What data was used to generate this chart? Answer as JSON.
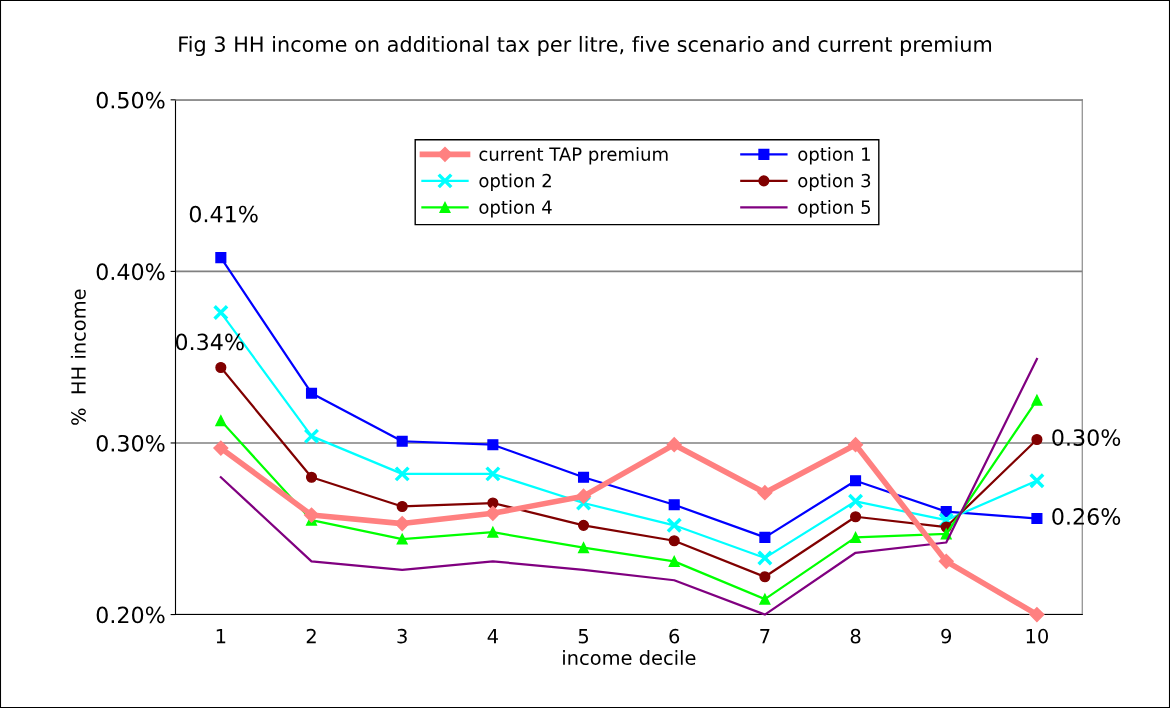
{
  "chart_data": {
    "type": "line",
    "title": "Fig 3 HH income on additional tax per litre, five scenario and current premium",
    "xlabel": "income decile",
    "ylabel": "%  HH income",
    "categories": [
      "1",
      "2",
      "3",
      "4",
      "5",
      "6",
      "7",
      "8",
      "9",
      "10"
    ],
    "series": [
      {
        "name": "current TAP premium",
        "color": "#ff8080",
        "marker": "diamond",
        "values": [
          0.297,
          0.258,
          0.253,
          0.259,
          0.269,
          0.299,
          0.271,
          0.299,
          0.231,
          0.2
        ]
      },
      {
        "name": "option 1",
        "color": "#0000ff",
        "marker": "square",
        "values": [
          0.408,
          0.329,
          0.301,
          0.299,
          0.28,
          0.264,
          0.245,
          0.278,
          0.26,
          0.256
        ],
        "value_labels": [
          "0.41%",
          null,
          null,
          null,
          null,
          null,
          null,
          null,
          null,
          "0.26%"
        ]
      },
      {
        "name": "option 2",
        "color": "#00ffff",
        "marker": "cross",
        "values": [
          0.376,
          0.304,
          0.282,
          0.282,
          0.265,
          0.252,
          0.233,
          0.266,
          0.255,
          0.278
        ]
      },
      {
        "name": "option 3",
        "color": "#800000",
        "marker": "circle",
        "values": [
          0.344,
          0.28,
          0.263,
          0.265,
          0.252,
          0.243,
          0.222,
          0.257,
          0.251,
          0.302
        ],
        "value_labels": [
          "0.34%",
          null,
          null,
          null,
          null,
          null,
          null,
          null,
          null,
          "0.30%"
        ]
      },
      {
        "name": "option 4",
        "color": "#00ff00",
        "marker": "triangle",
        "values": [
          0.313,
          0.255,
          0.244,
          0.248,
          0.239,
          0.231,
          0.209,
          0.245,
          0.247,
          0.325
        ]
      },
      {
        "name": "option 5",
        "color": "#800080",
        "marker": "none",
        "values": [
          0.28,
          0.231,
          0.226,
          0.231,
          0.226,
          0.22,
          0.2,
          0.236,
          0.242,
          0.349
        ]
      }
    ],
    "ylim": [
      0.2,
      0.5
    ],
    "yticks": [
      {
        "value": 0.2,
        "label": "0.20%"
      },
      {
        "value": 0.3,
        "label": "0.30%"
      },
      {
        "value": 0.4,
        "label": "0.40%"
      },
      {
        "value": 0.5,
        "label": "0.50%"
      }
    ],
    "grid": "y",
    "legend": "top"
  }
}
